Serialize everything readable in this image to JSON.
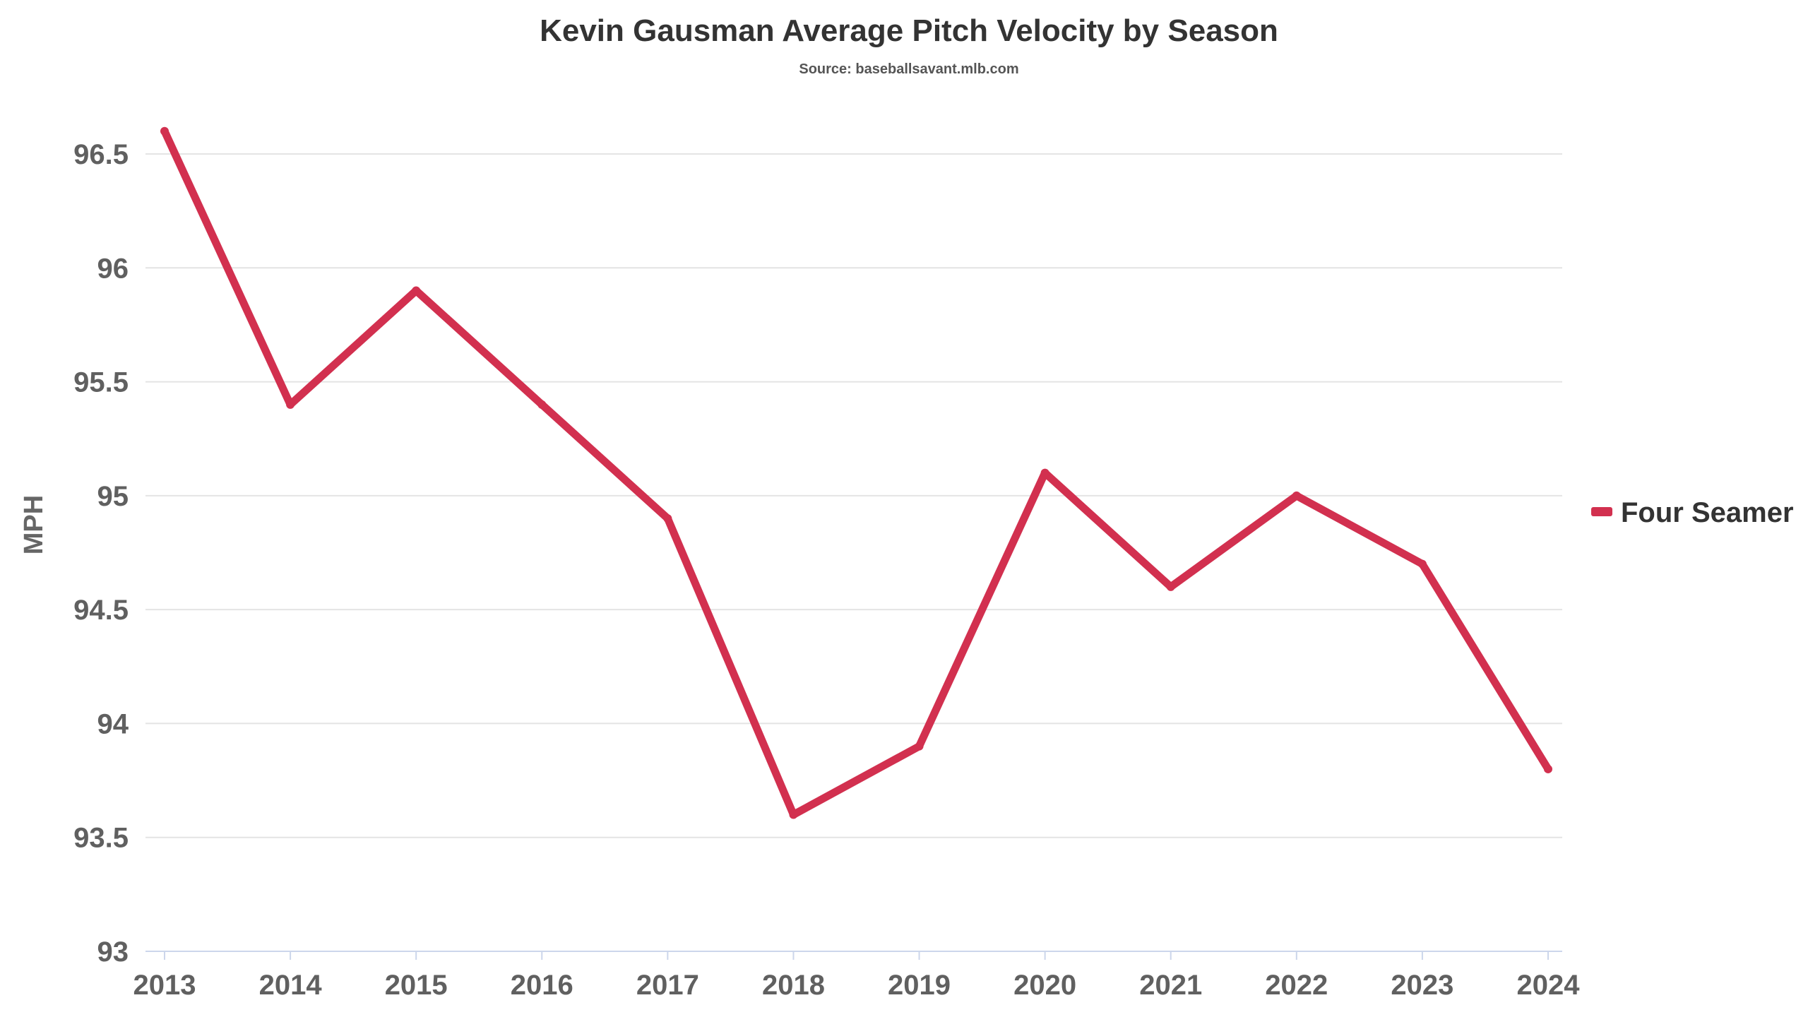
{
  "chart_data": {
    "type": "line",
    "title": "Kevin Gausman Average Pitch Velocity by Season",
    "subtitle": "Source: baseballsavant.mlb.com",
    "xlabel": "",
    "ylabel": "MPH",
    "x": [
      "2013",
      "2014",
      "2015",
      "2016",
      "2017",
      "2018",
      "2019",
      "2020",
      "2021",
      "2022",
      "2023",
      "2024"
    ],
    "ylim": [
      93,
      96.7
    ],
    "yticks": [
      93,
      93.5,
      94,
      94.5,
      95,
      95.5,
      96,
      96.5
    ],
    "ytick_labels": [
      "93",
      "93.5",
      "94",
      "94.5",
      "95",
      "95.5",
      "96",
      "96.5"
    ],
    "grid": true,
    "legend_position": "right",
    "series": [
      {
        "name": "Four Seamer",
        "color": "#d2304f",
        "values": [
          96.6,
          95.4,
          95.9,
          95.4,
          94.9,
          93.6,
          93.9,
          95.1,
          94.6,
          95.0,
          94.7,
          93.8
        ]
      }
    ]
  }
}
